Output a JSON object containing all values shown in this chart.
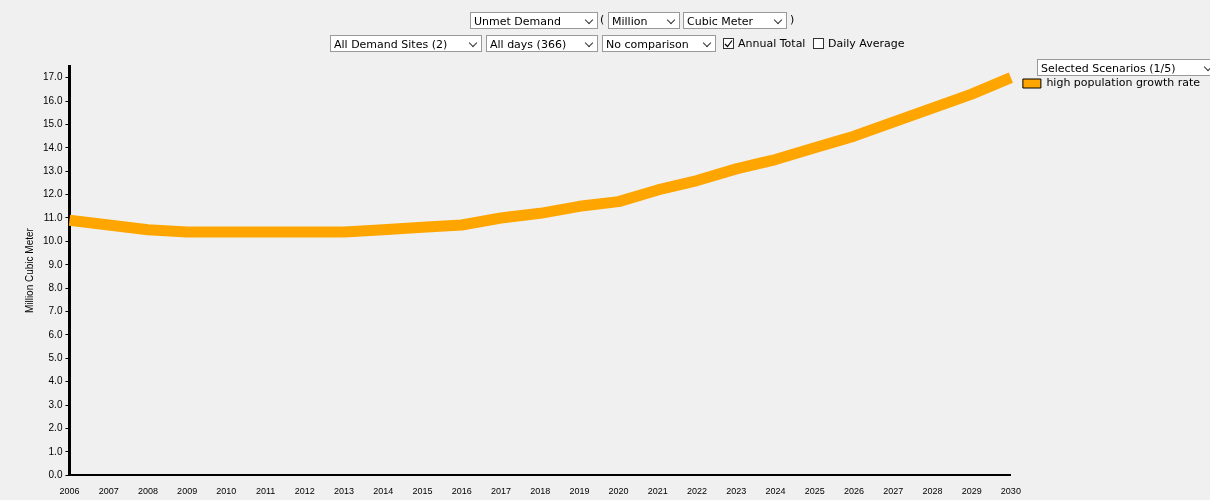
{
  "chart_data": {
    "type": "line",
    "ylabel": "Million Cubic Meter",
    "categories": [
      "2006",
      "2007",
      "2008",
      "2009",
      "2010",
      "2011",
      "2012",
      "2013",
      "2014",
      "2015",
      "2016",
      "2017",
      "2018",
      "2019",
      "2020",
      "2021",
      "2022",
      "2023",
      "2024",
      "2025",
      "2026",
      "2027",
      "2028",
      "2029",
      "2030"
    ],
    "series": [
      {
        "name": "high population growth rate",
        "color": "#ffa500",
        "values": [
          10.9,
          10.7,
          10.5,
          10.4,
          10.4,
          10.4,
          10.4,
          10.4,
          10.5,
          10.6,
          10.7,
          11.0,
          11.2,
          11.5,
          11.7,
          12.2,
          12.6,
          13.1,
          13.5,
          14.0,
          14.5,
          15.1,
          15.7,
          16.3,
          17.0
        ]
      }
    ],
    "ylim": [
      0,
      17.5
    ],
    "yticks": [
      {
        "value": 0,
        "label": "0.0"
      },
      {
        "value": 1,
        "label": "1.0"
      },
      {
        "value": 2,
        "label": "2.0"
      },
      {
        "value": 3,
        "label": "3.0"
      },
      {
        "value": 4,
        "label": "4.0"
      },
      {
        "value": 5,
        "label": "5.0"
      },
      {
        "value": 6,
        "label": "6.0"
      },
      {
        "value": 7,
        "label": "7.0"
      },
      {
        "value": 8,
        "label": "8.0"
      },
      {
        "value": 9,
        "label": "9.0"
      },
      {
        "value": 10,
        "label": "10.0"
      },
      {
        "value": 11,
        "label": "11.0"
      },
      {
        "value": 12,
        "label": "12.0"
      },
      {
        "value": 13,
        "label": "13.0"
      },
      {
        "value": 14,
        "label": "14.0"
      },
      {
        "value": 15,
        "label": "15.0"
      },
      {
        "value": 16,
        "label": "16.0"
      },
      {
        "value": 17,
        "label": "17.0"
      }
    ],
    "grid": false,
    "legend": "top right",
    "marker": "none",
    "line_style": "solid",
    "annotations": [
      "Unmet Demand",
      "Million",
      "Cubic Meter",
      "All Demand Sites (2)",
      "All days (366)",
      "No comparison",
      "Annual Total",
      "Daily Average",
      "Selected Scenarios (1/5)",
      "(",
      ")"
    ]
  }
}
